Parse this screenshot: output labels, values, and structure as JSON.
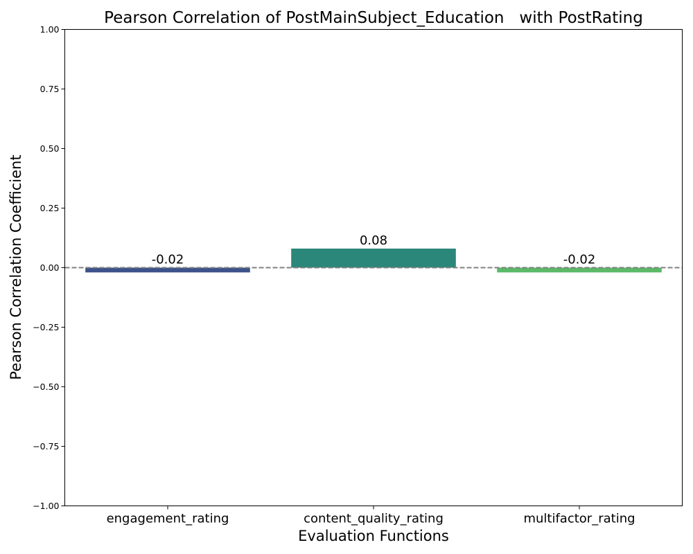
{
  "chart_data": {
    "type": "bar",
    "title": "Pearson Correlation of PostMainSubject_Education   with PostRating",
    "xlabel": "Evaluation Functions",
    "ylabel": "Pearson Correlation Coefficient",
    "categories": [
      "engagement_rating",
      "content_quality_rating",
      "multifactor_rating"
    ],
    "values": [
      -0.02,
      0.08,
      -0.02
    ],
    "value_labels": [
      "-0.02",
      "0.08",
      "-0.02"
    ],
    "colors": [
      "#3b528b",
      "#2a8779",
      "#5bba68"
    ],
    "ylim": [
      -1.0,
      1.0
    ],
    "yticks": [
      -1.0,
      -0.75,
      -0.5,
      -0.25,
      0.0,
      0.25,
      0.5,
      0.75,
      1.0
    ],
    "ytick_labels": [
      "−1.00",
      "−0.75",
      "−0.50",
      "−0.25",
      "0.00",
      "0.25",
      "0.50",
      "0.75",
      "1.00"
    ],
    "reference_line": {
      "y": 0.0,
      "style": "dashed",
      "color": "#808080"
    },
    "grid": false,
    "legend": "none"
  }
}
